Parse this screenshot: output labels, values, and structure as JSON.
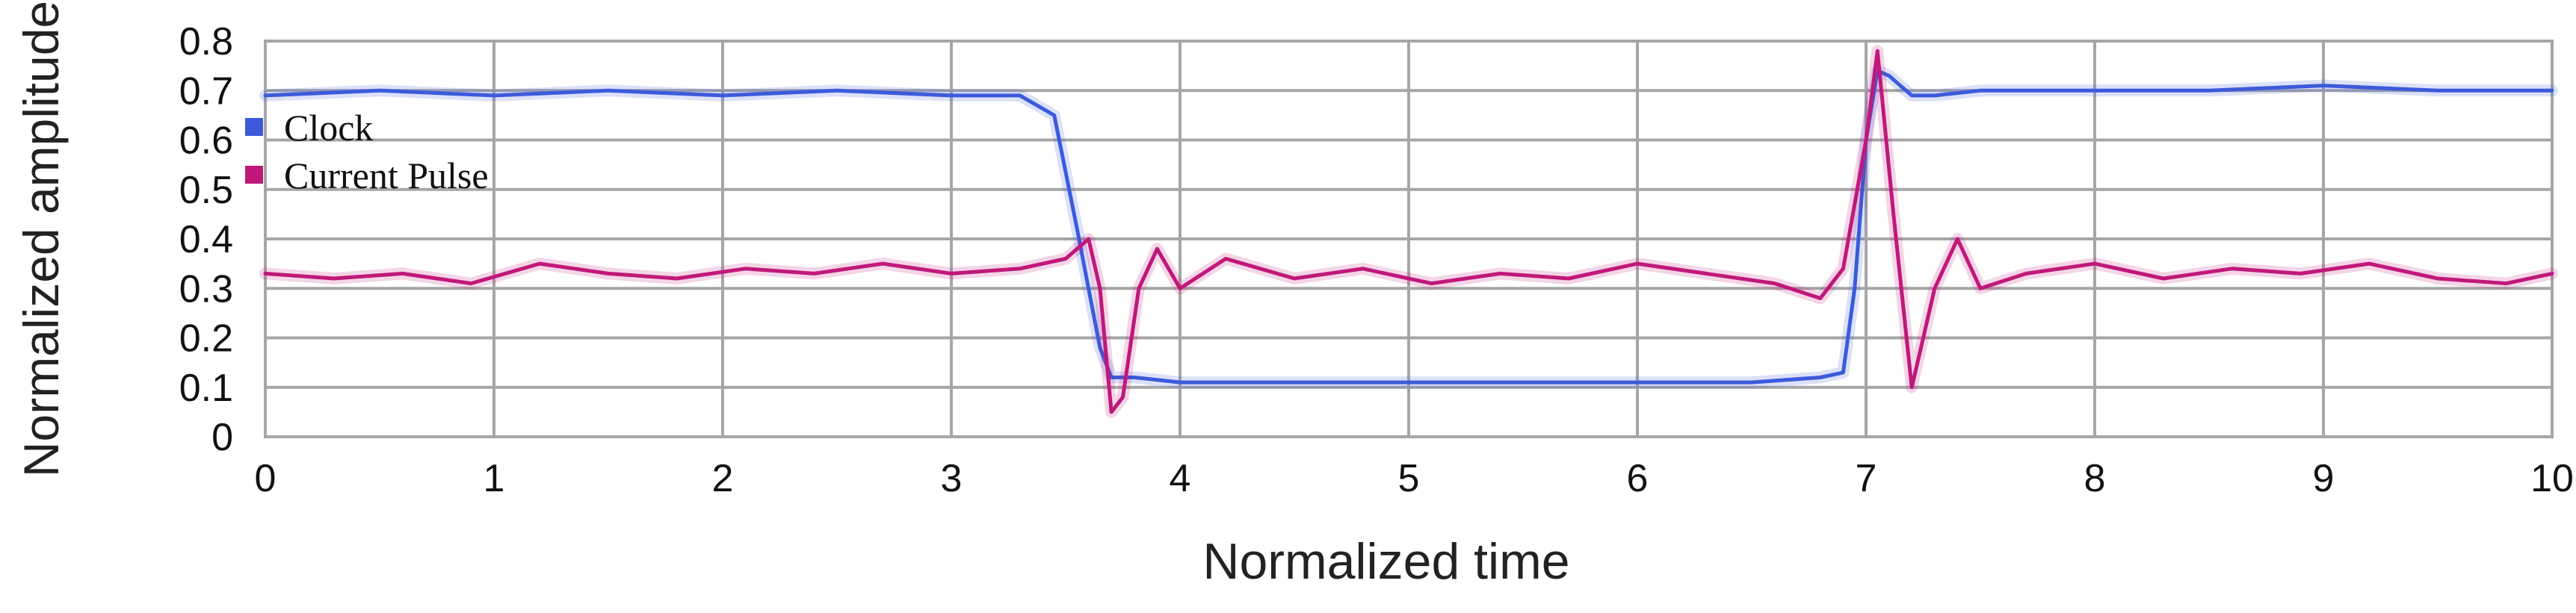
{
  "chart_data": {
    "type": "line",
    "xlabel": "Normalized time",
    "ylabel": "Normalized amplitude",
    "xlim": [
      0,
      10
    ],
    "ylim": [
      0,
      0.8
    ],
    "x_ticks": [
      "0",
      "1",
      "2",
      "3",
      "4",
      "5",
      "6",
      "7",
      "8",
      "9",
      "10"
    ],
    "y_ticks": [
      "0",
      "0.1",
      "0.2",
      "0.3",
      "0.4",
      "0.5",
      "0.6",
      "0.7",
      "0.8"
    ],
    "grid": true,
    "legend_position": "top-left",
    "series": [
      {
        "name": "Clock",
        "color": "#3b5bdb",
        "x": [
          0,
          0.5,
          1,
          1.5,
          2,
          2.5,
          3,
          3.3,
          3.45,
          3.55,
          3.6,
          3.65,
          3.7,
          3.8,
          4,
          4.5,
          5,
          5.5,
          6,
          6.5,
          6.8,
          6.9,
          6.95,
          7.0,
          7.05,
          7.1,
          7.2,
          7.3,
          7.5,
          8,
          8.5,
          9,
          9.5,
          10
        ],
        "values": [
          0.69,
          0.7,
          0.69,
          0.7,
          0.69,
          0.7,
          0.69,
          0.69,
          0.65,
          0.42,
          0.3,
          0.18,
          0.12,
          0.12,
          0.11,
          0.11,
          0.11,
          0.11,
          0.11,
          0.11,
          0.12,
          0.13,
          0.3,
          0.6,
          0.74,
          0.73,
          0.69,
          0.69,
          0.7,
          0.7,
          0.7,
          0.71,
          0.7,
          0.7
        ]
      },
      {
        "name": "Current Pulse",
        "color": "#c0187a",
        "x": [
          0,
          0.3,
          0.6,
          0.9,
          1.2,
          1.5,
          1.8,
          2.1,
          2.4,
          2.7,
          3.0,
          3.3,
          3.5,
          3.6,
          3.65,
          3.7,
          3.75,
          3.82,
          3.9,
          4.0,
          4.2,
          4.5,
          4.8,
          5.1,
          5.4,
          5.7,
          6.0,
          6.3,
          6.6,
          6.8,
          6.9,
          7.0,
          7.05,
          7.12,
          7.2,
          7.3,
          7.4,
          7.5,
          7.7,
          8.0,
          8.3,
          8.6,
          8.9,
          9.2,
          9.5,
          9.8,
          10
        ],
        "values": [
          0.33,
          0.32,
          0.33,
          0.31,
          0.35,
          0.33,
          0.32,
          0.34,
          0.33,
          0.35,
          0.33,
          0.34,
          0.36,
          0.4,
          0.3,
          0.05,
          0.08,
          0.3,
          0.38,
          0.3,
          0.36,
          0.32,
          0.34,
          0.31,
          0.33,
          0.32,
          0.35,
          0.33,
          0.31,
          0.28,
          0.34,
          0.6,
          0.78,
          0.45,
          0.1,
          0.3,
          0.4,
          0.3,
          0.33,
          0.35,
          0.32,
          0.34,
          0.33,
          0.35,
          0.32,
          0.31,
          0.33
        ]
      }
    ]
  }
}
